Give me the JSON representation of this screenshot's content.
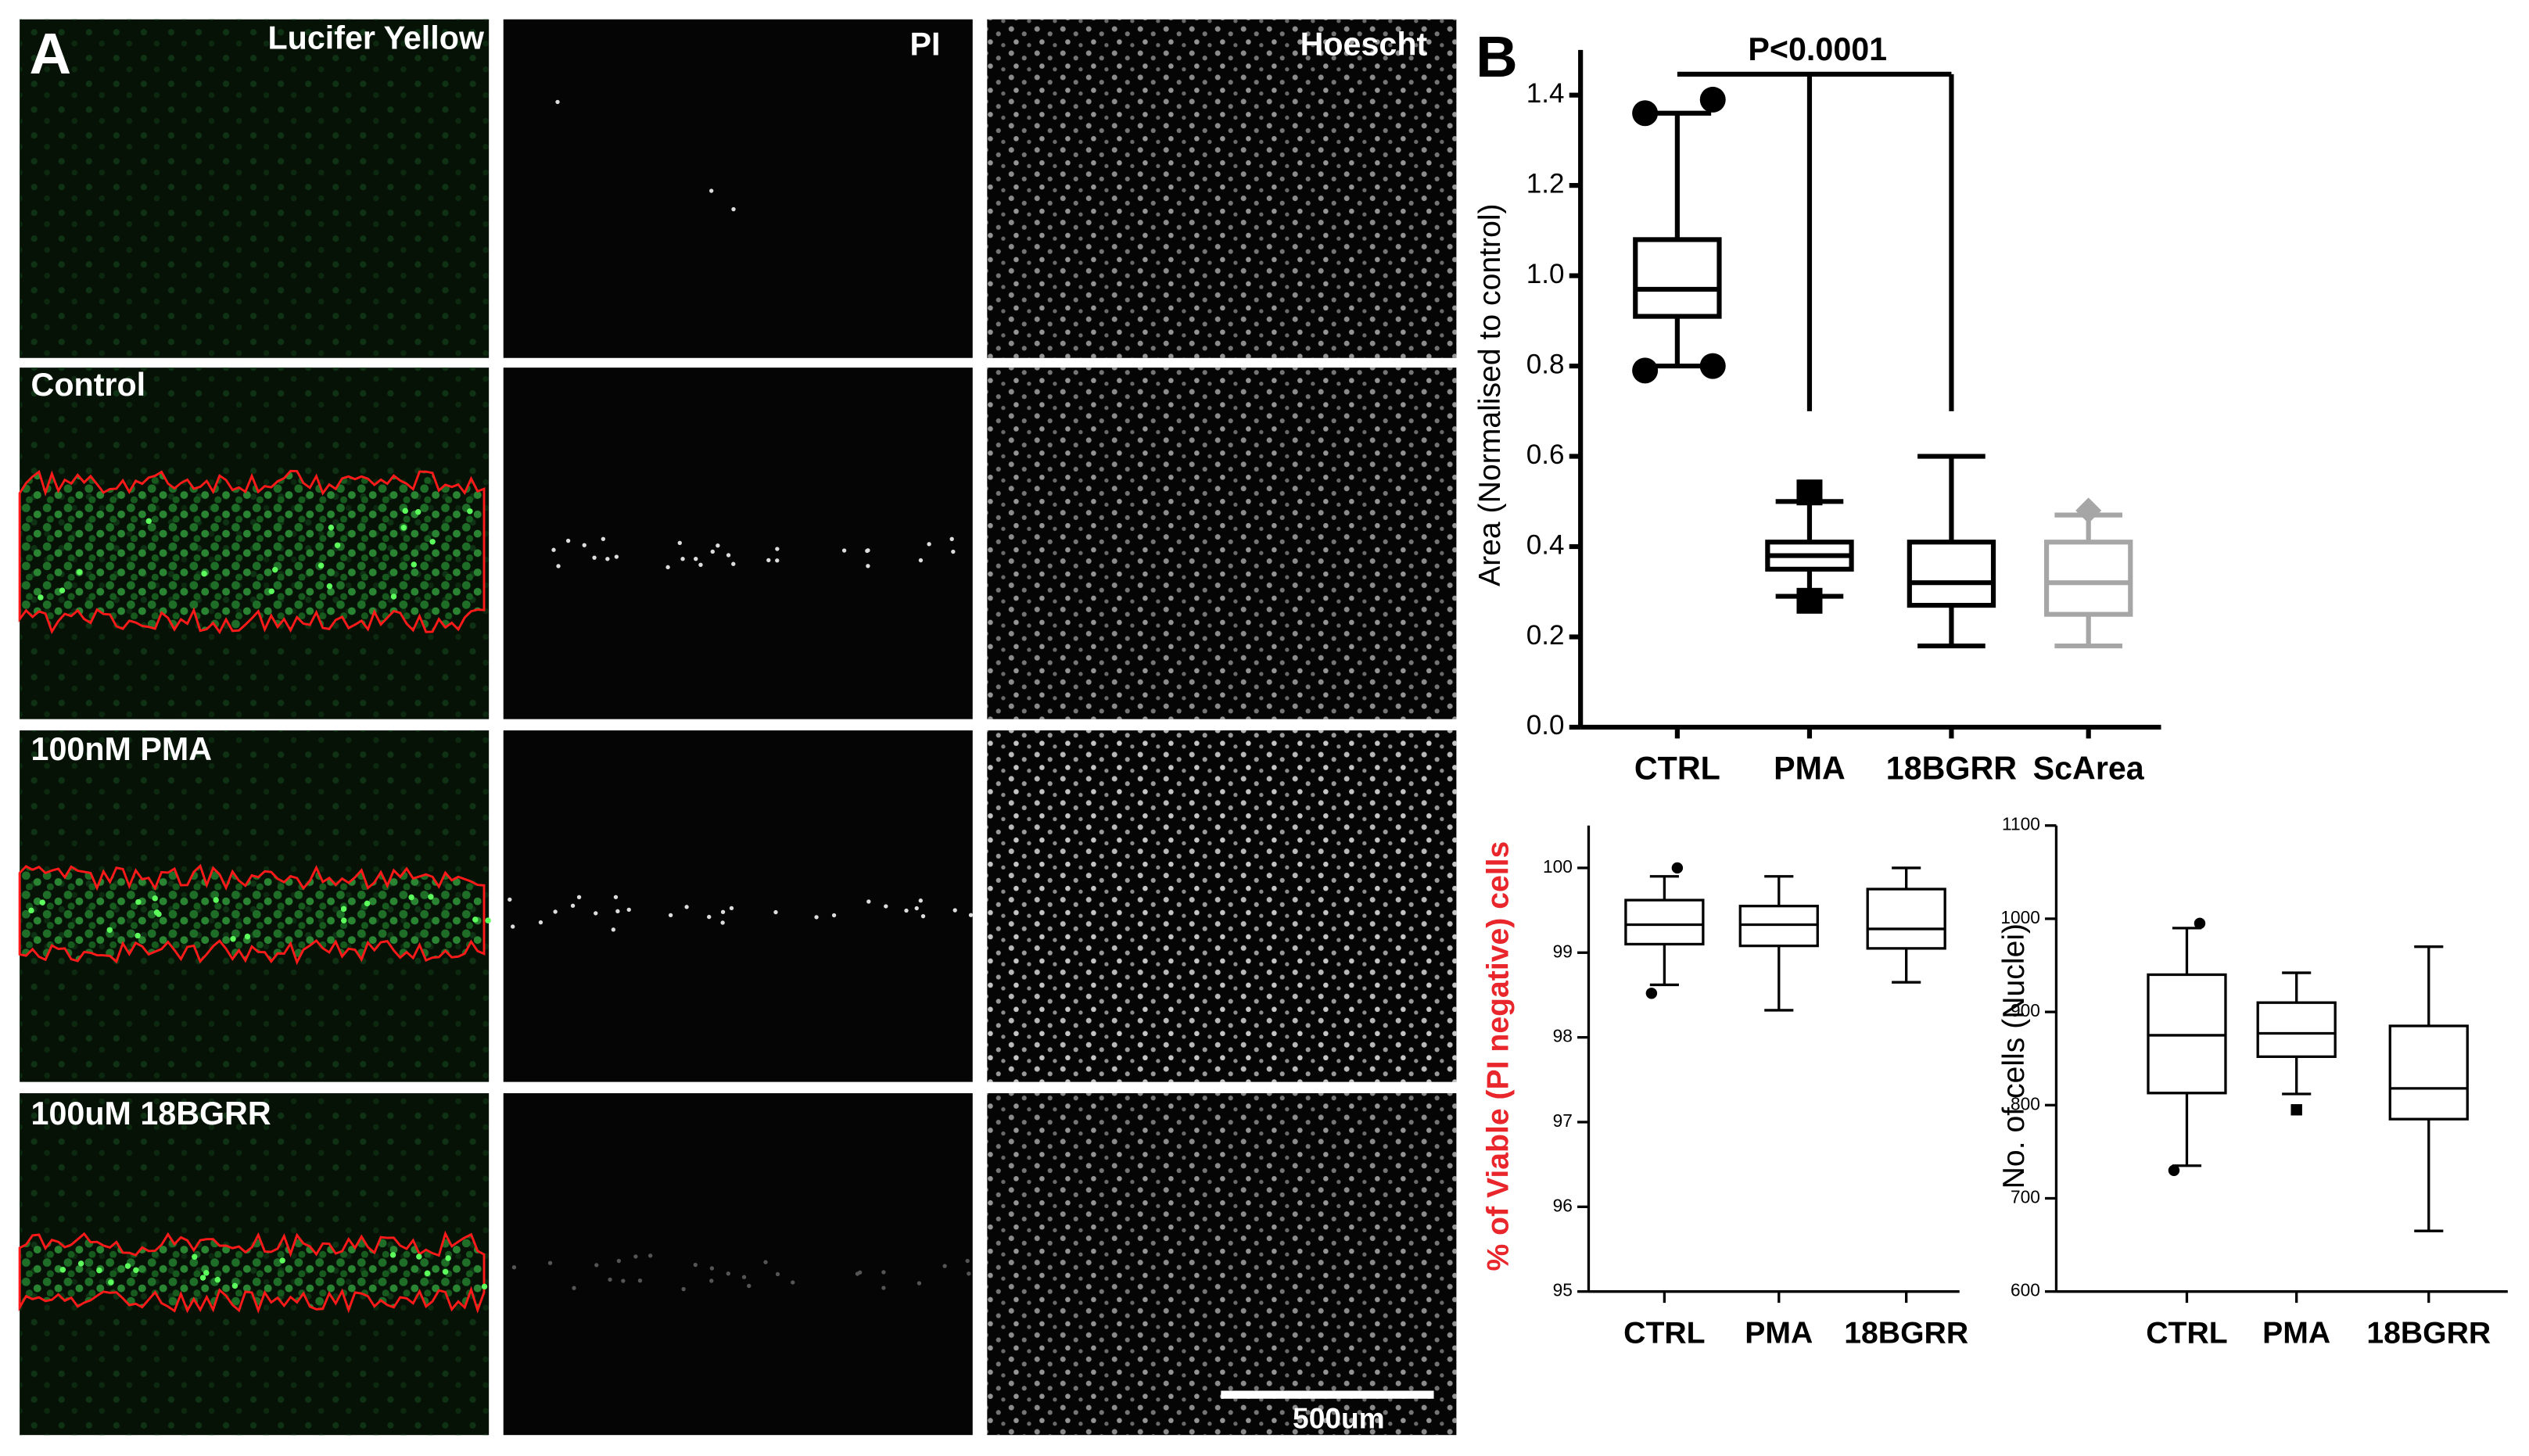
{
  "panel_a": {
    "label": "A",
    "columns": [
      "Lucifer Yellow",
      "PI",
      "Hoescht"
    ],
    "rows": [
      "Control",
      "100nM PMA",
      "100uM 18BGRR"
    ],
    "scale_bar": "500um"
  },
  "panel_b_label": "B",
  "chart_data": [
    {
      "type": "box",
      "ylabel": "Area (Normalised to control)",
      "annotation": "P<0.0001",
      "categories": [
        "CTRL",
        "PMA",
        "18BGRR",
        "ScArea"
      ],
      "ylim": [
        0,
        1.5
      ],
      "yticks": [
        {
          "value": 0,
          "label": "0.0"
        },
        0.2,
        0.4,
        0.6,
        0.8,
        {
          "value": 1,
          "label": "1.0"
        },
        1.2,
        1.4
      ],
      "boxes": [
        {
          "min": 0.8,
          "q1": 0.91,
          "median": 0.97,
          "q3": 1.08,
          "max": 1.36,
          "outliers": [
            1.39,
            1.36,
            0.79,
            0.8
          ],
          "color": "#000000",
          "marker": "circle"
        },
        {
          "min": 0.29,
          "q1": 0.35,
          "median": 0.38,
          "q3": 0.41,
          "max": 0.5,
          "outliers": [
            0.52,
            0.28
          ],
          "color": "#000000",
          "marker": "square"
        },
        {
          "min": 0.18,
          "q1": 0.27,
          "median": 0.32,
          "q3": 0.41,
          "max": 0.6,
          "outliers": [],
          "color": "#000000",
          "marker": "square"
        },
        {
          "min": 0.18,
          "q1": 0.25,
          "median": 0.32,
          "q3": 0.41,
          "max": 0.47,
          "outliers": [
            0.48
          ],
          "color": "#a6a6a6",
          "marker": "diamond"
        }
      ]
    },
    {
      "type": "box",
      "ylabel": "% of Viable (PI negative) cells",
      "ylabel_color": "#e8262b",
      "categories": [
        "CTRL",
        "PMA",
        "18BGRR"
      ],
      "ylim": [
        95,
        100.5
      ],
      "yticks": [
        95,
        96,
        97,
        98,
        99,
        100
      ],
      "boxes": [
        {
          "min": 98.62,
          "q1": 99.1,
          "median": 99.33,
          "q3": 99.62,
          "max": 99.9,
          "outliers": [
            100,
            98.52
          ],
          "color": "#000000",
          "marker": "circle"
        },
        {
          "min": 98.32,
          "q1": 99.08,
          "median": 99.33,
          "q3": 99.55,
          "max": 99.9,
          "outliers": [],
          "color": "#000000",
          "marker": "circle"
        },
        {
          "min": 98.65,
          "q1": 99.05,
          "median": 99.28,
          "q3": 99.75,
          "max": 100,
          "outliers": [],
          "color": "#000000",
          "marker": "circle"
        }
      ]
    },
    {
      "type": "box",
      "ylabel": "No. of cells (Nuclei)",
      "categories": [
        "CTRL",
        "PMA",
        "18BGRR"
      ],
      "ylim": [
        600,
        1100
      ],
      "yticks": [
        600,
        700,
        800,
        900,
        1000,
        1100
      ],
      "boxes": [
        {
          "min": 735,
          "q1": 813,
          "median": 875,
          "q3": 940,
          "max": 990,
          "outliers": [
            995,
            730
          ],
          "color": "#000000",
          "marker": "circle"
        },
        {
          "min": 812,
          "q1": 852,
          "median": 877,
          "q3": 910,
          "max": 942,
          "outliers": [
            795
          ],
          "color": "#000000",
          "marker": "square"
        },
        {
          "min": 665,
          "q1": 785,
          "median": 818,
          "q3": 885,
          "max": 970,
          "outliers": [],
          "color": "#000000",
          "marker": "circle"
        }
      ]
    }
  ]
}
